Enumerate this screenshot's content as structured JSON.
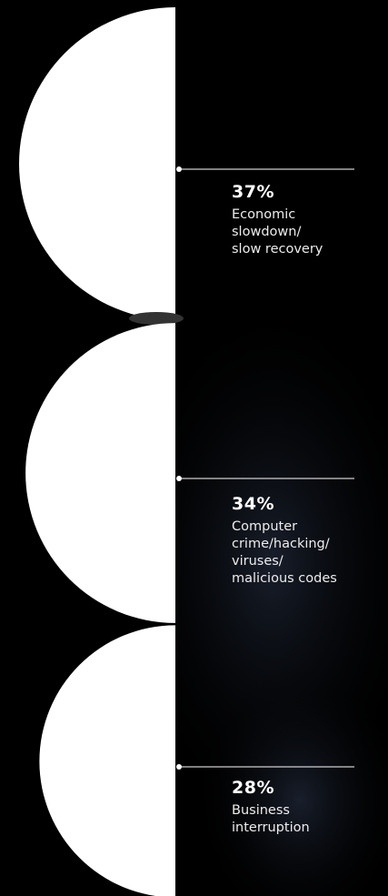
{
  "colors": {
    "background": "#000000",
    "semicircle": "#ffffff",
    "text": "#ffffff",
    "leader_line": "#ffffff"
  },
  "chart_data": {
    "type": "bar",
    "categories": [
      "Economic slowdown/ slow recovery",
      "Computer crime/hacking/ viruses/ malicious codes",
      "Business interruption"
    ],
    "values": [
      37,
      34,
      28
    ],
    "value_labels": [
      "37%",
      "34%",
      "28%"
    ],
    "label_lines": [
      [
        "Economic",
        "slowdown/",
        "slow recovery"
      ],
      [
        "Computer",
        "crime/hacking/",
        "viruses/",
        "malicious codes"
      ],
      [
        "Business",
        "interruption"
      ]
    ],
    "unit": "%",
    "title": "",
    "xlabel": "",
    "ylabel": "",
    "grid": false,
    "legend": "none"
  }
}
